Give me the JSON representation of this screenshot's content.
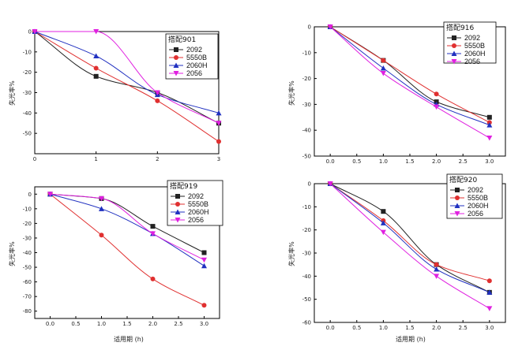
{
  "chart_data": [
    {
      "type": "line",
      "title": "搭配901",
      "xlabel": "",
      "ylabel": "失光率%",
      "xlim": [
        0,
        3
      ],
      "ylim": [
        -60,
        0
      ],
      "xticks": [
        0,
        1,
        2,
        3
      ],
      "yticks": [
        0,
        -10,
        -20,
        -30,
        -40,
        -50
      ],
      "x": [
        0,
        1,
        2,
        3
      ],
      "series": [
        {
          "name": "2092",
          "values": [
            0,
            -22,
            -30,
            -45
          ],
          "color": "#222222",
          "marker": "square"
        },
        {
          "name": "5550B",
          "values": [
            0,
            -18,
            -34,
            -54
          ],
          "color": "#e03030",
          "marker": "circle"
        },
        {
          "name": "2060H",
          "values": [
            0,
            -12,
            -31,
            -40
          ],
          "color": "#2030c0",
          "marker": "triangle-up"
        },
        {
          "name": "2056",
          "values": [
            0,
            0,
            -30,
            -45
          ],
          "color": "#e020e0",
          "marker": "triangle-down"
        }
      ]
    },
    {
      "type": "line",
      "title": "搭配916",
      "xlabel": "",
      "ylabel": "失光率%",
      "xlim": [
        -0.3,
        3.3
      ],
      "ylim": [
        -50,
        0
      ],
      "xticks": [
        0.0,
        0.5,
        1.0,
        1.5,
        2.0,
        2.5,
        3.0
      ],
      "xticklabels": [
        "0.0",
        "0.5",
        "1.0",
        "1.5",
        "2.0",
        "2.5",
        "3.0"
      ],
      "yticks": [
        0,
        -10,
        -20,
        -30,
        -40,
        -50
      ],
      "x": [
        0,
        1,
        2,
        3
      ],
      "series": [
        {
          "name": "2092",
          "values": [
            0,
            -13,
            -29,
            -35
          ],
          "color": "#222222",
          "marker": "square"
        },
        {
          "name": "5550B",
          "values": [
            0,
            -13,
            -26,
            -37
          ],
          "color": "#e03030",
          "marker": "circle"
        },
        {
          "name": "2060H",
          "values": [
            0,
            -16,
            -30,
            -38
          ],
          "color": "#2030c0",
          "marker": "triangle-up"
        },
        {
          "name": "2056",
          "values": [
            0,
            -18,
            -31,
            -43
          ],
          "color": "#e020e0",
          "marker": "triangle-down"
        }
      ]
    },
    {
      "type": "line",
      "title": "搭配919",
      "xlabel": "适用期 (h)",
      "ylabel": "失光率%",
      "xlim": [
        -0.3,
        3.3
      ],
      "ylim": [
        -85,
        5
      ],
      "xticks": [
        0.0,
        0.5,
        1.0,
        1.5,
        2.0,
        2.5,
        3.0
      ],
      "xticklabels": [
        "0.0",
        "0.5",
        "1.0",
        "1.5",
        "2.0",
        "2.5",
        "3.0"
      ],
      "yticks": [
        0,
        -10,
        -20,
        -30,
        -40,
        -50,
        -60,
        -70,
        -80
      ],
      "x": [
        0,
        1,
        2,
        3
      ],
      "series": [
        {
          "name": "2092",
          "values": [
            0,
            -3,
            -22,
            -40
          ],
          "color": "#222222",
          "marker": "square"
        },
        {
          "name": "5550B",
          "values": [
            0,
            -28,
            -58,
            -76
          ],
          "color": "#e03030",
          "marker": "circle"
        },
        {
          "name": "2060H",
          "values": [
            0,
            -10,
            -27,
            -49
          ],
          "color": "#2030c0",
          "marker": "triangle-up"
        },
        {
          "name": "2056",
          "values": [
            0,
            -3,
            -27,
            -45
          ],
          "color": "#e020e0",
          "marker": "triangle-down"
        }
      ]
    },
    {
      "type": "line",
      "title": "搭配920",
      "xlabel": "适用期 (h)",
      "ylabel": "失光率%",
      "xlim": [
        -0.3,
        3.3
      ],
      "ylim": [
        -60,
        0
      ],
      "xticks": [
        0.0,
        0.5,
        1.0,
        1.5,
        2.0,
        2.5,
        3.0
      ],
      "xticklabels": [
        "0.0",
        "0.5",
        "1.0",
        "1.5",
        "2.0",
        "2.5",
        "3.0"
      ],
      "yticks": [
        0,
        -10,
        -20,
        -30,
        -40,
        -50,
        -60
      ],
      "x": [
        0,
        1,
        2,
        3
      ],
      "series": [
        {
          "name": "2092",
          "values": [
            0,
            -12,
            -35,
            -47
          ],
          "color": "#222222",
          "marker": "square"
        },
        {
          "name": "5550B",
          "values": [
            0,
            -16,
            -35,
            -42
          ],
          "color": "#e03030",
          "marker": "circle"
        },
        {
          "name": "2060H",
          "values": [
            0,
            -17,
            -37,
            -47
          ],
          "color": "#2030c0",
          "marker": "triangle-up"
        },
        {
          "name": "2056",
          "values": [
            0,
            -21,
            -40,
            -54
          ],
          "color": "#e020e0",
          "marker": "triangle-down"
        }
      ]
    }
  ]
}
